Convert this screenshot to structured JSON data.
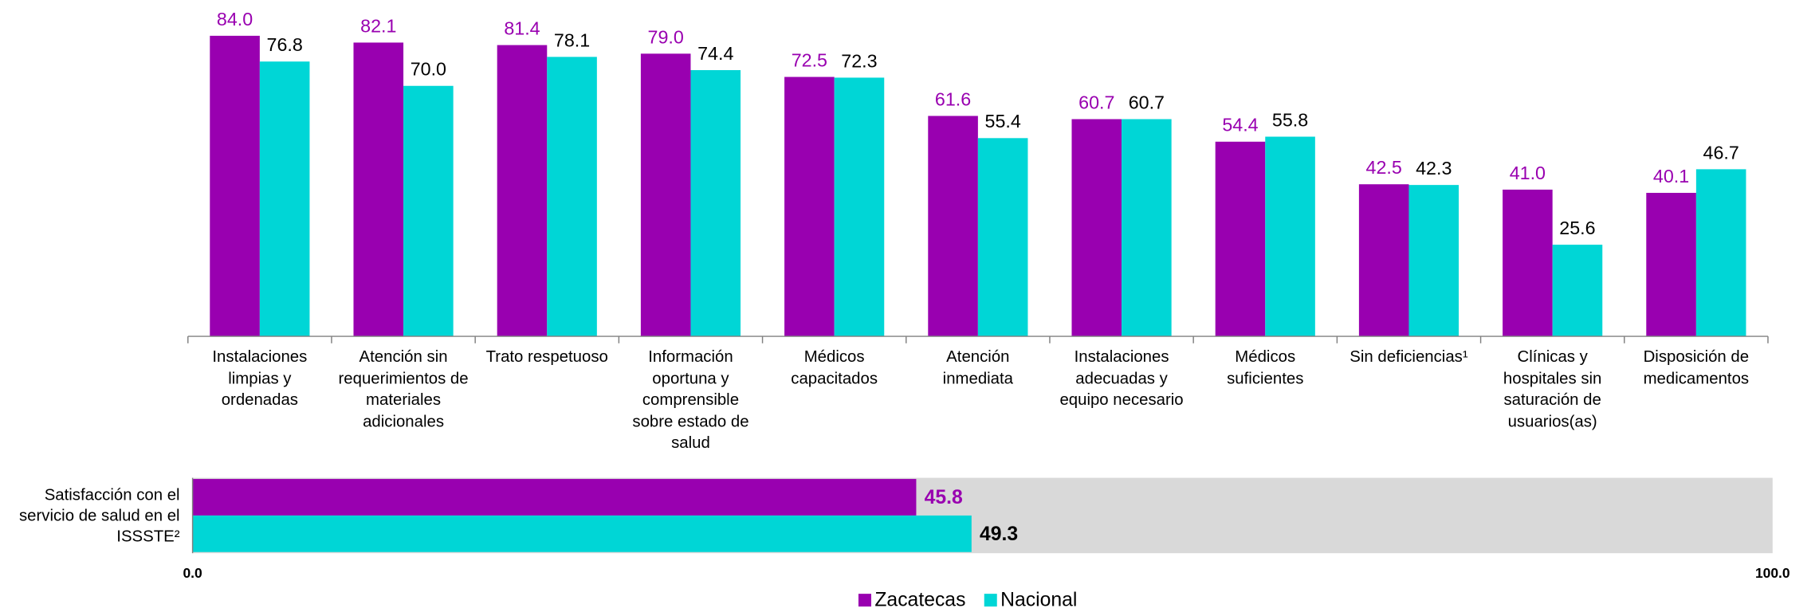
{
  "chart_data": [
    {
      "type": "bar",
      "categories": [
        "Instalaciones limpias y ordenadas",
        "Atención sin requerimientos de materiales adicionales",
        "Trato respetuoso",
        "Información oportuna y comprensible sobre estado de salud",
        "Médicos capacitados",
        "Atención inmediata",
        "Instalaciones adecuadas y equipo necesario",
        "Médicos suficientes",
        "Sin deficiencias¹",
        "Clínicas y hospitales sin saturación de usuarios(as)",
        "Disposición de medicamentos"
      ],
      "series": [
        {
          "name": "Zacatecas",
          "color": "#9900b0",
          "label_color": "#9900b0",
          "values": [
            84.0,
            82.1,
            81.4,
            79.0,
            72.5,
            61.6,
            60.7,
            54.4,
            42.5,
            41.0,
            40.1
          ],
          "value_labels": [
            "84.0",
            "82.1",
            "81.4",
            "79.0",
            "72.5",
            "61.6",
            "60.7",
            "54.4",
            "42.5",
            "41.0",
            "40.1"
          ]
        },
        {
          "name": "Nacional",
          "color": "#00d6d6",
          "label_color": "#000000",
          "values": [
            76.8,
            70.0,
            78.1,
            74.4,
            72.3,
            55.4,
            60.7,
            55.8,
            42.3,
            25.6,
            46.7
          ],
          "value_labels": [
            "76.8",
            "70.0",
            "78.1",
            "74.4",
            "72.3",
            "55.4",
            "60.7",
            "55.8",
            "42.3",
            "25.6",
            "46.7"
          ]
        }
      ],
      "ylim": [
        0,
        94
      ]
    },
    {
      "type": "hbar",
      "categories": [
        "Satisfacción con el servicio de salud en el ISSSTE²"
      ],
      "series": [
        {
          "color": "#9900b0",
          "label_color": "#9900b0",
          "values": [
            45.8
          ],
          "value_labels": [
            "45.8"
          ]
        },
        {
          "color": "#00d6d6",
          "label_color": "#000000",
          "values": [
            49.3
          ],
          "value_labels": [
            "49.3"
          ]
        }
      ],
      "xlim": [
        0,
        100
      ],
      "xticks": [
        {
          "value": 0,
          "label": "0.0"
        },
        {
          "value": 100,
          "label": "100.0"
        }
      ],
      "background": "#d9d9d9"
    }
  ]
}
